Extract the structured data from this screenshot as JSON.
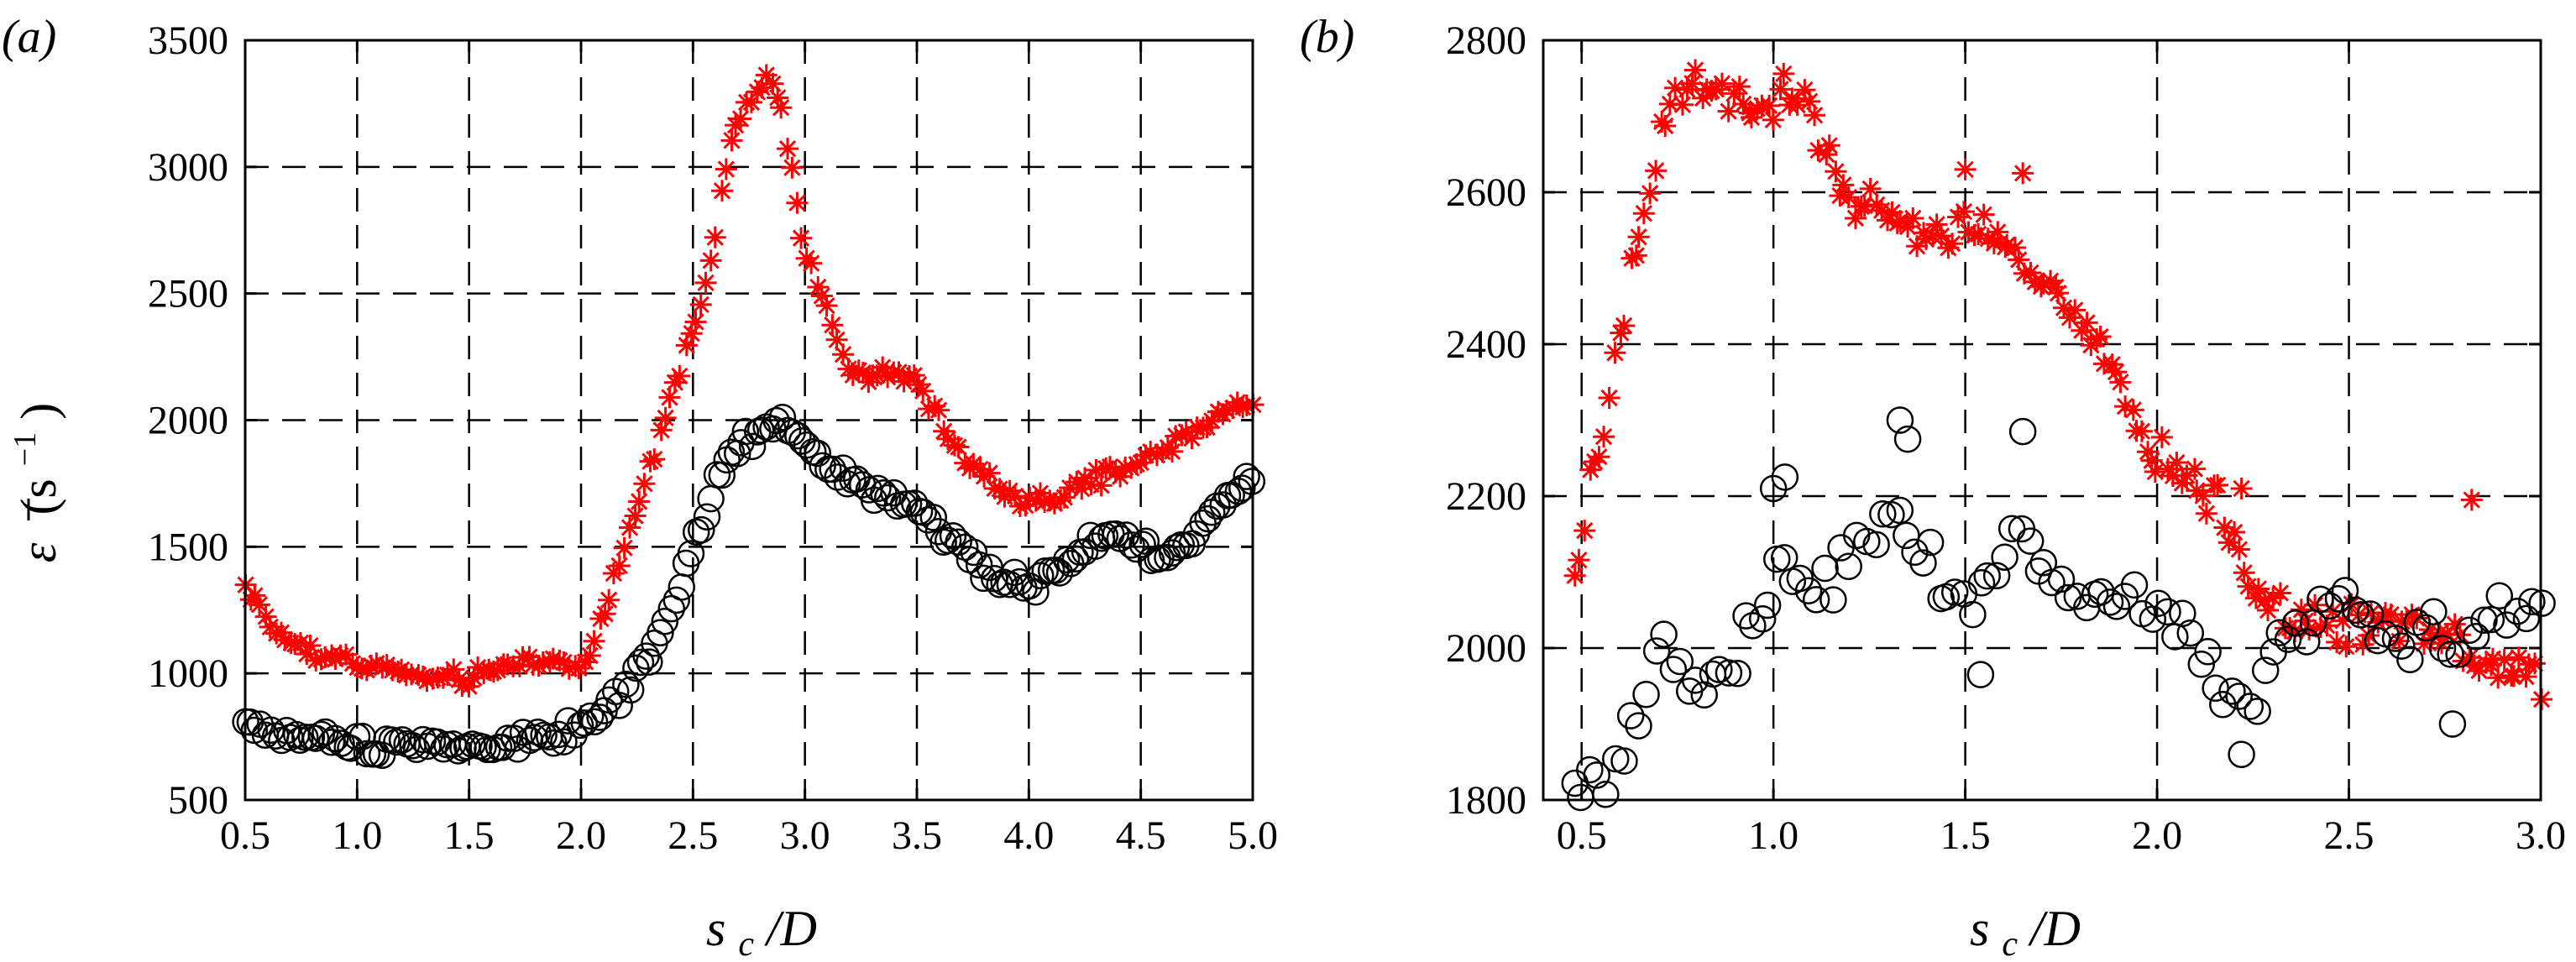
{
  "chart_data": [
    {
      "type": "scatter",
      "panel_label": "(a)",
      "xlabel": {
        "s": "s",
        "sub": "c",
        "rest": "/D"
      },
      "ylabel": {
        "sym": "ε",
        "unit_open": "(s",
        "exp": "−1",
        "unit_close": ")"
      },
      "xlim": [
        0.5,
        5.0
      ],
      "ylim": [
        500,
        3500
      ],
      "x_ticks": [
        0.5,
        1.0,
        1.5,
        2.0,
        2.5,
        3.0,
        3.5,
        4.0,
        4.5,
        5.0
      ],
      "x_tick_labels": [
        "0.5",
        "1.0",
        "1.5",
        "2.0",
        "2.5",
        "3.0",
        "3.5",
        "4.0",
        "4.5",
        "5.0"
      ],
      "y_ticks": [
        500,
        1000,
        1500,
        2000,
        2500,
        3000,
        3500
      ],
      "y_tick_labels": [
        "500",
        "1000",
        "1500",
        "2000",
        "2500",
        "3000",
        "3500"
      ],
      "grid": true,
      "series": [
        {
          "name": "red asterisks",
          "marker": "asterisk",
          "color": "#ff0000",
          "curve": [
            [
              0.5,
              1360
            ],
            [
              0.6,
              1200
            ],
            [
              0.7,
              1120
            ],
            [
              0.8,
              1080
            ],
            [
              0.9,
              1060
            ],
            [
              1.0,
              1040
            ],
            [
              1.1,
              1030
            ],
            [
              1.2,
              1000
            ],
            [
              1.3,
              980
            ],
            [
              1.4,
              975
            ],
            [
              1.5,
              980
            ],
            [
              1.6,
              1000
            ],
            [
              1.7,
              1040
            ],
            [
              1.8,
              1060
            ],
            [
              1.9,
              1040
            ],
            [
              1.95,
              1020
            ],
            [
              2.0,
              1030
            ],
            [
              2.05,
              1100
            ],
            [
              2.1,
              1250
            ],
            [
              2.2,
              1500
            ],
            [
              2.3,
              1800
            ],
            [
              2.4,
              2100
            ],
            [
              2.5,
              2350
            ],
            [
              2.6,
              2700
            ],
            [
              2.65,
              3000
            ],
            [
              2.7,
              3200
            ],
            [
              2.75,
              3250
            ],
            [
              2.8,
              3300
            ],
            [
              2.85,
              3350
            ],
            [
              2.9,
              3200
            ],
            [
              2.95,
              2950
            ],
            [
              3.0,
              2650
            ],
            [
              3.1,
              2450
            ],
            [
              3.2,
              2200
            ],
            [
              3.3,
              2150
            ],
            [
              3.4,
              2200
            ],
            [
              3.5,
              2150
            ],
            [
              3.6,
              2000
            ],
            [
              3.7,
              1850
            ],
            [
              3.8,
              1780
            ],
            [
              3.9,
              1720
            ],
            [
              4.0,
              1680
            ],
            [
              4.1,
              1680
            ],
            [
              4.2,
              1720
            ],
            [
              4.3,
              1760
            ],
            [
              4.4,
              1800
            ],
            [
              4.5,
              1840
            ],
            [
              4.6,
              1880
            ],
            [
              4.7,
              1940
            ],
            [
              4.8,
              2000
            ],
            [
              4.9,
              2040
            ],
            [
              5.0,
              2060
            ]
          ],
          "n_points": 200,
          "jitter": 35
        },
        {
          "name": "black circles",
          "marker": "circle",
          "color": "#000000",
          "curve": [
            [
              0.5,
              810
            ],
            [
              0.6,
              770
            ],
            [
              0.7,
              750
            ],
            [
              0.8,
              735
            ],
            [
              0.9,
              730
            ],
            [
              1.0,
              725
            ],
            [
              1.1,
              725
            ],
            [
              1.2,
              730
            ],
            [
              1.3,
              725
            ],
            [
              1.4,
              715
            ],
            [
              1.5,
              705
            ],
            [
              1.6,
              715
            ],
            [
              1.7,
              730
            ],
            [
              1.8,
              750
            ],
            [
              1.9,
              760
            ],
            [
              2.0,
              780
            ],
            [
              2.05,
              800
            ],
            [
              2.1,
              850
            ],
            [
              2.2,
              930
            ],
            [
              2.3,
              1050
            ],
            [
              2.4,
              1250
            ],
            [
              2.5,
              1500
            ],
            [
              2.6,
              1750
            ],
            [
              2.7,
              1900
            ],
            [
              2.8,
              1950
            ],
            [
              2.9,
              2000
            ],
            [
              2.95,
              1980
            ],
            [
              3.0,
              1880
            ],
            [
              3.1,
              1820
            ],
            [
              3.2,
              1780
            ],
            [
              3.3,
              1720
            ],
            [
              3.4,
              1700
            ],
            [
              3.5,
              1650
            ],
            [
              3.6,
              1560
            ],
            [
              3.7,
              1500
            ],
            [
              3.8,
              1420
            ],
            [
              3.9,
              1360
            ],
            [
              4.0,
              1350
            ],
            [
              4.1,
              1380
            ],
            [
              4.2,
              1450
            ],
            [
              4.3,
              1520
            ],
            [
              4.4,
              1540
            ],
            [
              4.5,
              1500
            ],
            [
              4.6,
              1440
            ],
            [
              4.7,
              1520
            ],
            [
              4.8,
              1620
            ],
            [
              4.9,
              1720
            ],
            [
              5.0,
              1760
            ]
          ],
          "n_points": 200,
          "jitter": 40
        }
      ]
    },
    {
      "type": "scatter",
      "panel_label": "(b)",
      "xlabel": {
        "s": "s",
        "sub": "c",
        "rest": "/D"
      },
      "xlim": [
        0.4,
        3.0
      ],
      "ylim": [
        1800,
        2800
      ],
      "x_ticks": [
        0.5,
        1.0,
        1.5,
        2.0,
        2.5,
        3.0
      ],
      "x_tick_labels": [
        "0.5",
        "1.0",
        "1.5",
        "2.0",
        "2.5",
        "3.0"
      ],
      "y_ticks": [
        1800,
        2000,
        2200,
        2400,
        2600,
        2800
      ],
      "y_tick_labels": [
        "1800",
        "2000",
        "2200",
        "2400",
        "2600",
        "2800"
      ],
      "grid": true,
      "series": [
        {
          "name": "red asterisks",
          "marker": "asterisk",
          "color": "#ff0000",
          "curve": [
            [
              0.48,
              2100
            ],
            [
              0.5,
              2150
            ],
            [
              0.52,
              2200
            ],
            [
              0.55,
              2250
            ],
            [
              0.58,
              2350
            ],
            [
              0.62,
              2460
            ],
            [
              0.66,
              2560
            ],
            [
              0.7,
              2660
            ],
            [
              0.75,
              2730
            ],
            [
              0.8,
              2740
            ],
            [
              0.9,
              2720
            ],
            [
              1.0,
              2710
            ],
            [
              1.05,
              2730
            ],
            [
              1.1,
              2700
            ],
            [
              1.15,
              2640
            ],
            [
              1.2,
              2590
            ],
            [
              1.3,
              2570
            ],
            [
              1.4,
              2540
            ],
            [
              1.5,
              2560
            ],
            [
              1.6,
              2540
            ],
            [
              1.7,
              2480
            ],
            [
              1.8,
              2420
            ],
            [
              1.9,
              2360
            ],
            [
              1.95,
              2280
            ],
            [
              2.0,
              2250
            ],
            [
              2.1,
              2220
            ],
            [
              2.2,
              2150
            ],
            [
              2.25,
              2080
            ],
            [
              2.3,
              2050
            ],
            [
              2.4,
              2030
            ],
            [
              2.5,
              2030
            ],
            [
              2.6,
              2040
            ],
            [
              2.7,
              2030
            ],
            [
              2.8,
              2010
            ],
            [
              2.9,
              1970
            ],
            [
              3.0,
              1960
            ]
          ],
          "n_points": 190,
          "jitter": 28,
          "extra_points": [
            [
              2.82,
              2195
            ],
            [
              1.65,
              2625
            ],
            [
              1.5,
              2630
            ],
            [
              2.22,
              2210
            ]
          ]
        },
        {
          "name": "black circles",
          "marker": "circle",
          "color": "#000000",
          "curve": [
            [
              0.48,
              1830
            ],
            [
              0.52,
              1820
            ],
            [
              0.56,
              1840
            ],
            [
              0.6,
              1870
            ],
            [
              0.65,
              1920
            ],
            [
              0.7,
              1970
            ],
            [
              0.75,
              1990
            ],
            [
              0.8,
              1960
            ],
            [
              0.85,
              1950
            ],
            [
              0.9,
              1980
            ],
            [
              0.95,
              2030
            ],
            [
              1.0,
              2100
            ],
            [
              1.05,
              2090
            ],
            [
              1.1,
              2080
            ],
            [
              1.15,
              2110
            ],
            [
              1.2,
              2120
            ],
            [
              1.25,
              2150
            ],
            [
              1.3,
              2180
            ],
            [
              1.35,
              2170
            ],
            [
              1.4,
              2120
            ],
            [
              1.45,
              2080
            ],
            [
              1.5,
              2060
            ],
            [
              1.55,
              2080
            ],
            [
              1.6,
              2130
            ],
            [
              1.65,
              2140
            ],
            [
              1.7,
              2110
            ],
            [
              1.8,
              2070
            ],
            [
              1.9,
              2050
            ],
            [
              2.0,
              2060
            ],
            [
              2.05,
              2030
            ],
            [
              2.1,
              2000
            ],
            [
              2.15,
              1970
            ],
            [
              2.2,
              1940
            ],
            [
              2.25,
              1920
            ],
            [
              2.3,
              1990
            ],
            [
              2.4,
              2030
            ],
            [
              2.5,
              2050
            ],
            [
              2.6,
              2020
            ],
            [
              2.7,
              2020
            ],
            [
              2.8,
              2010
            ],
            [
              2.9,
              2030
            ],
            [
              3.0,
              2060
            ]
          ],
          "n_points": 120,
          "jitter": 35,
          "extra_points": [
            [
              1.33,
              2300
            ],
            [
              1.35,
              2275
            ],
            [
              1.65,
              2285
            ],
            [
              1.03,
              2225
            ],
            [
              1.0,
              2210
            ],
            [
              2.22,
              1860
            ],
            [
              1.54,
              1965
            ],
            [
              2.77,
              1900
            ]
          ]
        }
      ]
    }
  ]
}
